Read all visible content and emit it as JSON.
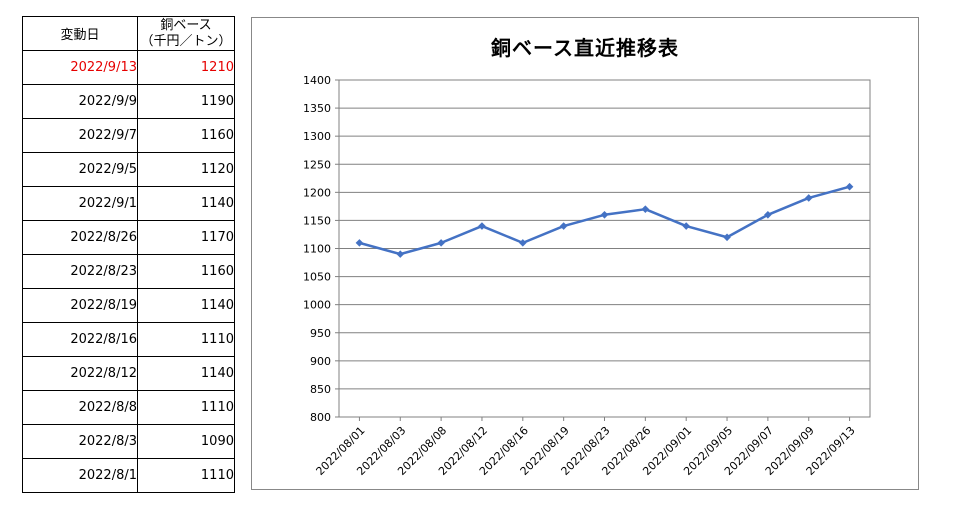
{
  "table": {
    "header_date": "変動日",
    "header_price_line1": "銅ベース",
    "header_price_line2": "（千円／トン）",
    "rows": [
      {
        "date": "2022/9/13",
        "price": "1210",
        "latest": true
      },
      {
        "date": "2022/9/9",
        "price": "1190"
      },
      {
        "date": "2022/9/7",
        "price": "1160"
      },
      {
        "date": "2022/9/5",
        "price": "1120"
      },
      {
        "date": "2022/9/1",
        "price": "1140"
      },
      {
        "date": "2022/8/26",
        "price": "1170"
      },
      {
        "date": "2022/8/23",
        "price": "1160"
      },
      {
        "date": "2022/8/19",
        "price": "1140"
      },
      {
        "date": "2022/8/16",
        "price": "1110"
      },
      {
        "date": "2022/8/12",
        "price": "1140"
      },
      {
        "date": "2022/8/8",
        "price": "1110"
      },
      {
        "date": "2022/8/3",
        "price": "1090"
      },
      {
        "date": "2022/8/1",
        "price": "1110"
      }
    ]
  },
  "colors": {
    "latest_text": "#e60000",
    "series_line": "#4472c4",
    "grid": "#808080"
  },
  "chart_data": {
    "type": "line",
    "title": "銅ベース直近推移表",
    "categories": [
      "2022/08/01",
      "2022/08/03",
      "2022/08/08",
      "2022/08/12",
      "2022/08/16",
      "2022/08/19",
      "2022/08/23",
      "2022/08/26",
      "2022/09/01",
      "2022/09/05",
      "2022/09/07",
      "2022/09/09",
      "2022/09/13"
    ],
    "series": [
      {
        "values": [
          1110,
          1090,
          1110,
          1140,
          1110,
          1140,
          1160,
          1170,
          1140,
          1120,
          1160,
          1190,
          1210
        ]
      }
    ],
    "ylim": [
      800,
      1400
    ],
    "ystep": 50,
    "grid": true,
    "legend": false,
    "xlabel": "",
    "ylabel": ""
  }
}
